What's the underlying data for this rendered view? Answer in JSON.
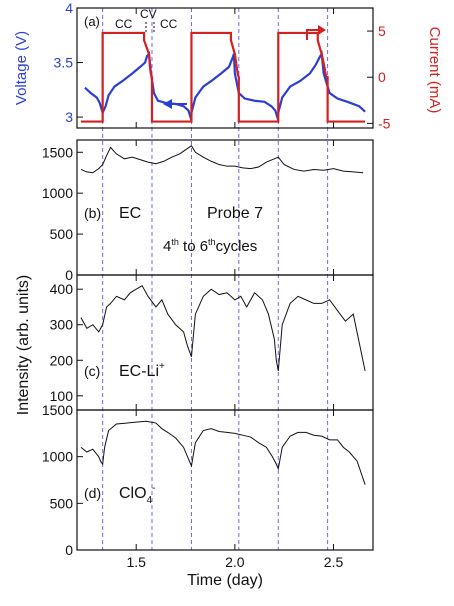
{
  "colors": {
    "voltage": "#2b3fd6",
    "current": "#d42020",
    "black": "#111111",
    "divider": "#6a6af0"
  },
  "chart_data": [
    {
      "type": "line",
      "panel": "a",
      "panel_label": "(a)",
      "xlim": [
        1.2,
        2.7
      ],
      "ylabel_left": "Voltage (V)",
      "ylabel_right": "Current (mA)",
      "ylim_left": [
        2.9,
        4.0
      ],
      "ylim_right": [
        -5.5,
        7.5
      ],
      "yticks_left": [
        3,
        3.5,
        4
      ],
      "yticks_right": [
        -5,
        0,
        5
      ],
      "annotations": [
        "CC",
        "CV",
        "CC"
      ],
      "series": [
        {
          "axis": "left",
          "x": [
            1.24,
            1.27,
            1.3,
            1.315,
            1.33,
            1.345,
            1.36,
            1.39,
            1.43,
            1.48,
            1.52,
            1.545,
            1.555,
            1.565,
            1.575,
            1.59,
            1.61,
            1.65,
            1.7,
            1.74,
            1.765,
            1.775,
            1.78,
            1.8,
            1.84,
            1.88,
            1.93,
            1.97,
            1.99,
            1.995,
            2.0,
            2.02,
            2.05,
            2.1,
            2.15,
            2.185,
            2.205,
            2.215,
            2.22,
            2.24,
            2.28,
            2.33,
            2.38,
            2.41,
            2.43,
            2.44,
            2.45,
            2.48,
            2.52,
            2.57,
            2.63,
            2.66
          ],
          "y": [
            3.27,
            3.22,
            3.18,
            3.13,
            3.04,
            3.1,
            3.2,
            3.28,
            3.33,
            3.4,
            3.46,
            3.5,
            3.56,
            3.58,
            3.4,
            3.22,
            3.15,
            3.13,
            3.12,
            3.1,
            3.06,
            3.0,
            3.04,
            3.18,
            3.28,
            3.33,
            3.4,
            3.46,
            3.55,
            3.58,
            3.4,
            3.22,
            3.17,
            3.15,
            3.14,
            3.1,
            3.06,
            3.0,
            3.04,
            3.18,
            3.28,
            3.33,
            3.4,
            3.48,
            3.55,
            3.58,
            3.4,
            3.22,
            3.17,
            3.14,
            3.1,
            3.05
          ]
        },
        {
          "axis": "right",
          "x": [
            1.22,
            1.33,
            1.33,
            1.54,
            1.54,
            1.565,
            1.57,
            1.575,
            1.58,
            1.58,
            1.78,
            1.78,
            1.98,
            1.98,
            2.0,
            2.01,
            2.015,
            2.02,
            2.02,
            2.22,
            2.22,
            2.42,
            2.42,
            2.44,
            2.455,
            2.46,
            2.465,
            2.47,
            2.47,
            2.66
          ],
          "y": [
            -4.8,
            -4.8,
            4.8,
            4.8,
            4.0,
            2.5,
            1.0,
            0.3,
            0.0,
            -4.8,
            -4.8,
            4.8,
            4.8,
            4.0,
            2.5,
            1.0,
            0.3,
            0.0,
            -4.8,
            -4.8,
            4.8,
            4.8,
            4.0,
            2.5,
            1.0,
            0.3,
            0.0,
            0.0,
            -4.8,
            -4.8
          ]
        }
      ]
    },
    {
      "type": "line",
      "panel": "b",
      "panel_label": "(b)",
      "text": [
        "EC",
        "Probe 7",
        "4th to 6th cycles"
      ],
      "ylim": [
        0,
        1650
      ],
      "yticks": [
        0,
        500,
        1000,
        1500
      ],
      "xlim": [
        1.2,
        2.7
      ],
      "series": [
        {
          "x": [
            1.22,
            1.25,
            1.28,
            1.31,
            1.33,
            1.35,
            1.37,
            1.4,
            1.44,
            1.48,
            1.52,
            1.56,
            1.6,
            1.64,
            1.68,
            1.72,
            1.75,
            1.78,
            1.8,
            1.84,
            1.88,
            1.92,
            1.96,
            2.0,
            2.04,
            2.08,
            2.12,
            2.16,
            2.2,
            2.22,
            2.25,
            2.3,
            2.35,
            2.4,
            2.45,
            2.5,
            2.55,
            2.6,
            2.65
          ],
          "y": [
            1290,
            1260,
            1250,
            1300,
            1350,
            1460,
            1560,
            1480,
            1420,
            1440,
            1410,
            1380,
            1360,
            1390,
            1440,
            1480,
            1530,
            1580,
            1500,
            1440,
            1390,
            1350,
            1330,
            1330,
            1310,
            1300,
            1320,
            1380,
            1420,
            1440,
            1350,
            1290,
            1270,
            1290,
            1280,
            1300,
            1270,
            1260,
            1250
          ]
        }
      ]
    },
    {
      "type": "line",
      "panel": "c",
      "panel_label": "(c)",
      "label": "EC-Li",
      "label_sup": "+",
      "ylabel": "Intensity (arb. units)",
      "ylim": [
        60,
        440
      ],
      "yticks": [
        100,
        200,
        300,
        400
      ],
      "xlim": [
        1.2,
        2.7
      ],
      "series": [
        {
          "x": [
            1.22,
            1.25,
            1.28,
            1.31,
            1.33,
            1.35,
            1.37,
            1.4,
            1.44,
            1.47,
            1.5,
            1.53,
            1.56,
            1.6,
            1.63,
            1.66,
            1.7,
            1.74,
            1.76,
            1.78,
            1.8,
            1.84,
            1.88,
            1.92,
            1.96,
            2.0,
            2.03,
            2.06,
            2.1,
            2.14,
            2.17,
            2.2,
            2.21,
            2.22,
            2.24,
            2.28,
            2.32,
            2.36,
            2.4,
            2.44,
            2.48,
            2.52,
            2.56,
            2.6,
            2.63,
            2.66
          ],
          "y": [
            320,
            290,
            300,
            280,
            300,
            350,
            360,
            380,
            370,
            390,
            400,
            410,
            380,
            350,
            370,
            330,
            300,
            280,
            240,
            210,
            330,
            380,
            400,
            385,
            390,
            370,
            380,
            350,
            390,
            370,
            330,
            260,
            200,
            170,
            300,
            360,
            380,
            370,
            360,
            360,
            370,
            340,
            310,
            330,
            250,
            170
          ]
        }
      ]
    },
    {
      "type": "line",
      "panel": "d",
      "panel_label": "(d)",
      "label": "ClO",
      "label_sub": "4",
      "label_sup": "-",
      "ylim": [
        0,
        1500
      ],
      "yticks": [
        0,
        500,
        1000,
        1500
      ],
      "xlim": [
        1.2,
        2.7
      ],
      "xlabel": "Time (day)",
      "xticks": [
        1.5,
        2.0,
        2.5
      ],
      "series": [
        {
          "x": [
            1.22,
            1.25,
            1.28,
            1.31,
            1.32,
            1.33,
            1.34,
            1.36,
            1.4,
            1.45,
            1.5,
            1.55,
            1.6,
            1.63,
            1.66,
            1.7,
            1.74,
            1.76,
            1.78,
            1.8,
            1.84,
            1.88,
            1.92,
            1.96,
            2.0,
            2.04,
            2.08,
            2.12,
            2.16,
            2.19,
            2.21,
            2.22,
            2.24,
            2.28,
            2.32,
            2.36,
            2.4,
            2.44,
            2.48,
            2.52,
            2.55,
            2.58,
            2.62,
            2.66
          ],
          "y": [
            1100,
            1050,
            1080,
            1000,
            950,
            920,
            1100,
            1280,
            1350,
            1360,
            1370,
            1380,
            1360,
            1300,
            1260,
            1200,
            1100,
            1000,
            900,
            1150,
            1280,
            1300,
            1270,
            1260,
            1250,
            1230,
            1210,
            1150,
            1100,
            1000,
            920,
            870,
            1100,
            1220,
            1260,
            1260,
            1230,
            1220,
            1180,
            1180,
            1100,
            1050,
            950,
            700
          ]
        }
      ]
    }
  ]
}
